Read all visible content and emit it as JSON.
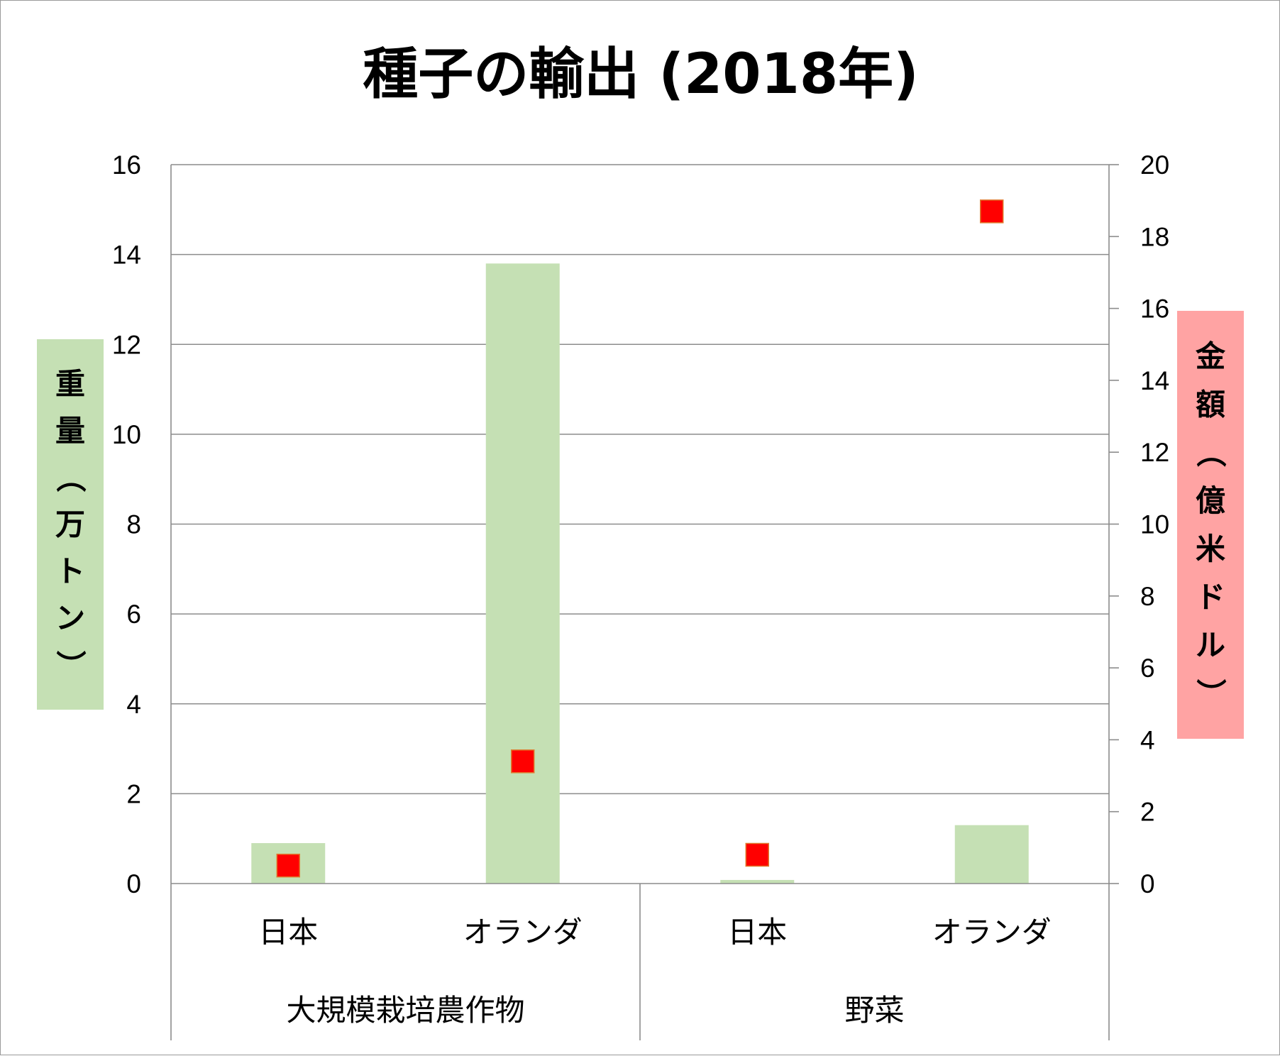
{
  "chart_data": {
    "type": "bar",
    "title": "種子の輸出 (2018年)",
    "groups": [
      {
        "label": "大規模栽培農作物",
        "categories": [
          "日本",
          "オランダ"
        ]
      },
      {
        "label": "野菜",
        "categories": [
          "日本",
          "オランダ"
        ]
      }
    ],
    "categories": [
      "日本",
      "オランダ",
      "日本",
      "オランダ"
    ],
    "series": [
      {
        "name": "重量（万トン）",
        "type": "bar",
        "axis": "left",
        "color": "#c5e0b4",
        "values": [
          0.9,
          13.8,
          0.08,
          1.3
        ]
      },
      {
        "name": "金額（億米ドル）",
        "type": "scatter",
        "axis": "right",
        "color": "#ff0000",
        "values": [
          0.5,
          3.4,
          0.8,
          18.7
        ]
      }
    ],
    "y_left": {
      "label": "重量（万トン）",
      "range": [
        0,
        16
      ],
      "ticks": [
        0,
        2,
        4,
        6,
        8,
        10,
        12,
        14,
        16
      ],
      "label_bg": "#c5e0b4"
    },
    "y_right": {
      "label": "金額（億米ドル）",
      "range": [
        0,
        20
      ],
      "ticks": [
        0,
        2,
        4,
        6,
        8,
        10,
        12,
        14,
        16,
        18,
        20
      ],
      "label_bg": "#ffa3a3"
    },
    "grid": true,
    "legend": "none"
  }
}
